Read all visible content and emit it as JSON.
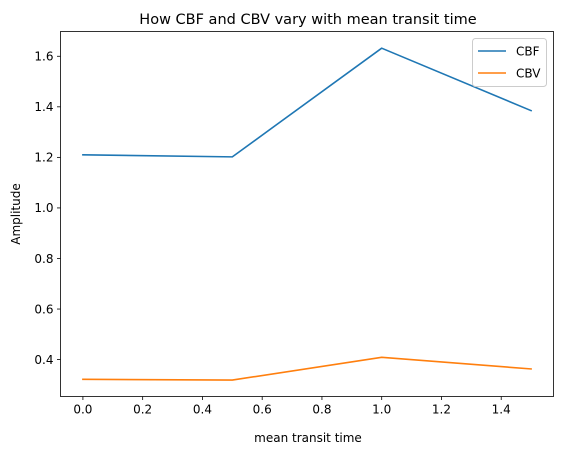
{
  "chart_data": {
    "type": "line",
    "title": "How CBF and CBV vary with mean transit time",
    "xlabel": "mean transit time",
    "ylabel": "Amplitude",
    "x": [
      0.0,
      0.5,
      1.0,
      1.5
    ],
    "series": [
      {
        "name": "CBF",
        "values": [
          1.21,
          1.202,
          1.632,
          1.385
        ],
        "color": "#1f77b4"
      },
      {
        "name": "CBV",
        "values": [
          0.322,
          0.319,
          0.409,
          0.363
        ],
        "color": "#ff7f0e"
      }
    ],
    "xlim": [
      -0.075,
      1.575
    ],
    "ylim": [
      0.254,
      1.698
    ],
    "xticks": [
      0.0,
      0.2,
      0.4,
      0.6,
      0.8,
      1.0,
      1.2,
      1.4
    ],
    "xtick_labels": [
      "0.0",
      "0.2",
      "0.4",
      "0.6",
      "0.8",
      "1.0",
      "1.2",
      "1.4"
    ],
    "yticks": [
      0.4,
      0.6,
      0.8,
      1.0,
      1.2,
      1.4,
      1.6
    ],
    "ytick_labels": [
      "0.4",
      "0.6",
      "0.8",
      "1.0",
      "1.2",
      "1.4",
      "1.6"
    ],
    "grid": false,
    "legend_position": "top-right"
  }
}
